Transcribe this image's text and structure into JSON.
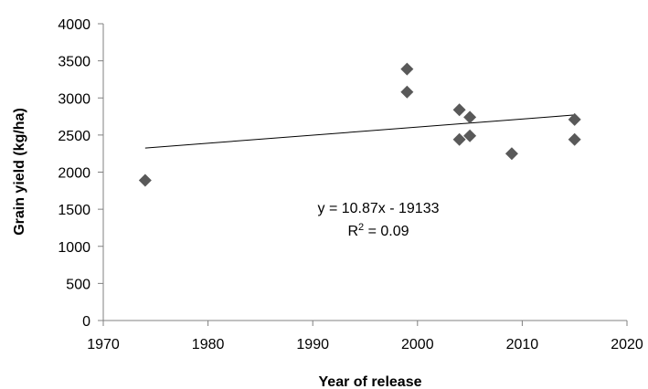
{
  "chart_data": {
    "type": "scatter",
    "xlabel": "Year of release",
    "ylabel": "Grain yield  (kg/ha)",
    "xlim": [
      1970,
      2020
    ],
    "ylim": [
      0,
      4000
    ],
    "x_ticks": [
      "1970",
      "1980",
      "1990",
      "2000",
      "2010",
      "2020"
    ],
    "y_ticks": [
      "0",
      "500",
      "1000",
      "1500",
      "2000",
      "2500",
      "3000",
      "3500",
      "4000"
    ],
    "grid": false,
    "marker": "diamond",
    "marker_color": "#595959",
    "points": [
      {
        "x": 1974,
        "y": 1890
      },
      {
        "x": 1999,
        "y": 3390
      },
      {
        "x": 1999,
        "y": 3080
      },
      {
        "x": 2004,
        "y": 2840
      },
      {
        "x": 2004,
        "y": 2440
      },
      {
        "x": 2005,
        "y": 2740
      },
      {
        "x": 2005,
        "y": 2490
      },
      {
        "x": 2009,
        "y": 2250
      },
      {
        "x": 2015,
        "y": 2710
      },
      {
        "x": 2015,
        "y": 2440
      }
    ],
    "trendline": {
      "slope": 10.87,
      "intercept": -19133,
      "x_start": 1974,
      "x_end": 2015
    },
    "annotations": {
      "equation": "y = 10.87x - 19133",
      "r2_prefix": "R",
      "r2_sup": "2",
      "r2_suffix": " = 0.09"
    }
  }
}
